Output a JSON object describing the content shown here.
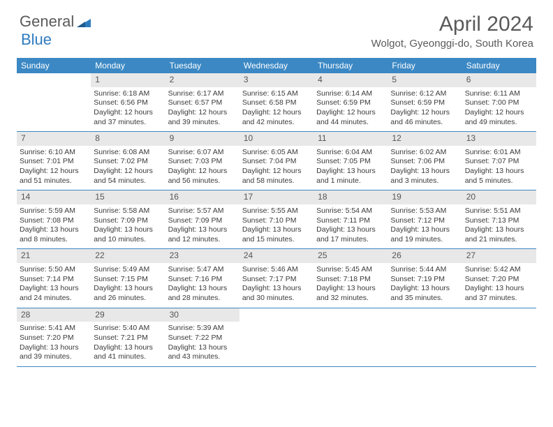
{
  "logo": {
    "text1": "General",
    "text2": "Blue"
  },
  "title": "April 2024",
  "location": "Wolgot, Gyeonggi-do, South Korea",
  "colors": {
    "header_bg": "#3b88c4",
    "header_text": "#ffffff",
    "daynum_bg": "#e8e8e8",
    "text": "#3a3a3a",
    "border": "#3b88c4"
  },
  "weekdays": [
    "Sunday",
    "Monday",
    "Tuesday",
    "Wednesday",
    "Thursday",
    "Friday",
    "Saturday"
  ],
  "weeks": [
    [
      null,
      {
        "n": "1",
        "sr": "Sunrise: 6:18 AM",
        "ss": "Sunset: 6:56 PM",
        "dl1": "Daylight: 12 hours",
        "dl2": "and 37 minutes."
      },
      {
        "n": "2",
        "sr": "Sunrise: 6:17 AM",
        "ss": "Sunset: 6:57 PM",
        "dl1": "Daylight: 12 hours",
        "dl2": "and 39 minutes."
      },
      {
        "n": "3",
        "sr": "Sunrise: 6:15 AM",
        "ss": "Sunset: 6:58 PM",
        "dl1": "Daylight: 12 hours",
        "dl2": "and 42 minutes."
      },
      {
        "n": "4",
        "sr": "Sunrise: 6:14 AM",
        "ss": "Sunset: 6:59 PM",
        "dl1": "Daylight: 12 hours",
        "dl2": "and 44 minutes."
      },
      {
        "n": "5",
        "sr": "Sunrise: 6:12 AM",
        "ss": "Sunset: 6:59 PM",
        "dl1": "Daylight: 12 hours",
        "dl2": "and 46 minutes."
      },
      {
        "n": "6",
        "sr": "Sunrise: 6:11 AM",
        "ss": "Sunset: 7:00 PM",
        "dl1": "Daylight: 12 hours",
        "dl2": "and 49 minutes."
      }
    ],
    [
      {
        "n": "7",
        "sr": "Sunrise: 6:10 AM",
        "ss": "Sunset: 7:01 PM",
        "dl1": "Daylight: 12 hours",
        "dl2": "and 51 minutes."
      },
      {
        "n": "8",
        "sr": "Sunrise: 6:08 AM",
        "ss": "Sunset: 7:02 PM",
        "dl1": "Daylight: 12 hours",
        "dl2": "and 54 minutes."
      },
      {
        "n": "9",
        "sr": "Sunrise: 6:07 AM",
        "ss": "Sunset: 7:03 PM",
        "dl1": "Daylight: 12 hours",
        "dl2": "and 56 minutes."
      },
      {
        "n": "10",
        "sr": "Sunrise: 6:05 AM",
        "ss": "Sunset: 7:04 PM",
        "dl1": "Daylight: 12 hours",
        "dl2": "and 58 minutes."
      },
      {
        "n": "11",
        "sr": "Sunrise: 6:04 AM",
        "ss": "Sunset: 7:05 PM",
        "dl1": "Daylight: 13 hours",
        "dl2": "and 1 minute."
      },
      {
        "n": "12",
        "sr": "Sunrise: 6:02 AM",
        "ss": "Sunset: 7:06 PM",
        "dl1": "Daylight: 13 hours",
        "dl2": "and 3 minutes."
      },
      {
        "n": "13",
        "sr": "Sunrise: 6:01 AM",
        "ss": "Sunset: 7:07 PM",
        "dl1": "Daylight: 13 hours",
        "dl2": "and 5 minutes."
      }
    ],
    [
      {
        "n": "14",
        "sr": "Sunrise: 5:59 AM",
        "ss": "Sunset: 7:08 PM",
        "dl1": "Daylight: 13 hours",
        "dl2": "and 8 minutes."
      },
      {
        "n": "15",
        "sr": "Sunrise: 5:58 AM",
        "ss": "Sunset: 7:09 PM",
        "dl1": "Daylight: 13 hours",
        "dl2": "and 10 minutes."
      },
      {
        "n": "16",
        "sr": "Sunrise: 5:57 AM",
        "ss": "Sunset: 7:09 PM",
        "dl1": "Daylight: 13 hours",
        "dl2": "and 12 minutes."
      },
      {
        "n": "17",
        "sr": "Sunrise: 5:55 AM",
        "ss": "Sunset: 7:10 PM",
        "dl1": "Daylight: 13 hours",
        "dl2": "and 15 minutes."
      },
      {
        "n": "18",
        "sr": "Sunrise: 5:54 AM",
        "ss": "Sunset: 7:11 PM",
        "dl1": "Daylight: 13 hours",
        "dl2": "and 17 minutes."
      },
      {
        "n": "19",
        "sr": "Sunrise: 5:53 AM",
        "ss": "Sunset: 7:12 PM",
        "dl1": "Daylight: 13 hours",
        "dl2": "and 19 minutes."
      },
      {
        "n": "20",
        "sr": "Sunrise: 5:51 AM",
        "ss": "Sunset: 7:13 PM",
        "dl1": "Daylight: 13 hours",
        "dl2": "and 21 minutes."
      }
    ],
    [
      {
        "n": "21",
        "sr": "Sunrise: 5:50 AM",
        "ss": "Sunset: 7:14 PM",
        "dl1": "Daylight: 13 hours",
        "dl2": "and 24 minutes."
      },
      {
        "n": "22",
        "sr": "Sunrise: 5:49 AM",
        "ss": "Sunset: 7:15 PM",
        "dl1": "Daylight: 13 hours",
        "dl2": "and 26 minutes."
      },
      {
        "n": "23",
        "sr": "Sunrise: 5:47 AM",
        "ss": "Sunset: 7:16 PM",
        "dl1": "Daylight: 13 hours",
        "dl2": "and 28 minutes."
      },
      {
        "n": "24",
        "sr": "Sunrise: 5:46 AM",
        "ss": "Sunset: 7:17 PM",
        "dl1": "Daylight: 13 hours",
        "dl2": "and 30 minutes."
      },
      {
        "n": "25",
        "sr": "Sunrise: 5:45 AM",
        "ss": "Sunset: 7:18 PM",
        "dl1": "Daylight: 13 hours",
        "dl2": "and 32 minutes."
      },
      {
        "n": "26",
        "sr": "Sunrise: 5:44 AM",
        "ss": "Sunset: 7:19 PM",
        "dl1": "Daylight: 13 hours",
        "dl2": "and 35 minutes."
      },
      {
        "n": "27",
        "sr": "Sunrise: 5:42 AM",
        "ss": "Sunset: 7:20 PM",
        "dl1": "Daylight: 13 hours",
        "dl2": "and 37 minutes."
      }
    ],
    [
      {
        "n": "28",
        "sr": "Sunrise: 5:41 AM",
        "ss": "Sunset: 7:20 PM",
        "dl1": "Daylight: 13 hours",
        "dl2": "and 39 minutes."
      },
      {
        "n": "29",
        "sr": "Sunrise: 5:40 AM",
        "ss": "Sunset: 7:21 PM",
        "dl1": "Daylight: 13 hours",
        "dl2": "and 41 minutes."
      },
      {
        "n": "30",
        "sr": "Sunrise: 5:39 AM",
        "ss": "Sunset: 7:22 PM",
        "dl1": "Daylight: 13 hours",
        "dl2": "and 43 minutes."
      },
      null,
      null,
      null,
      null
    ]
  ]
}
